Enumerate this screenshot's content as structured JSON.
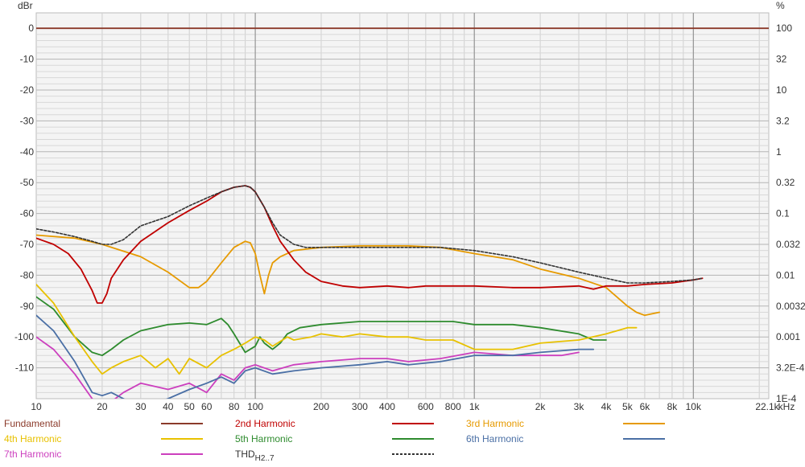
{
  "chart_data": {
    "type": "line",
    "y_unit_left": "dBr",
    "y_unit_right": "%",
    "x_unit": "kHz",
    "x_scale": "log",
    "xlim": [
      10,
      22100
    ],
    "ylim": [
      -120,
      5
    ],
    "grid": true,
    "x_tick_labels": [
      "10",
      "20",
      "30",
      "40",
      "50",
      "60",
      "80",
      "100",
      "200",
      "300",
      "400",
      "600",
      "800",
      "1k",
      "2k",
      "3k",
      "4k",
      "5k",
      "6k",
      "8k",
      "10k",
      "22.1k"
    ],
    "x_ticks_hz": [
      10,
      20,
      30,
      40,
      50,
      60,
      80,
      100,
      200,
      300,
      400,
      600,
      800,
      1000,
      2000,
      3000,
      4000,
      5000,
      6000,
      8000,
      10000,
      22100
    ],
    "y_ticks_left": [
      0,
      -10,
      -20,
      -30,
      -40,
      -50,
      -60,
      -70,
      -80,
      -90,
      -100,
      -110
    ],
    "y_ticks_right": [
      {
        "db": 0,
        "label": "100"
      },
      {
        "db": -10,
        "label": "32"
      },
      {
        "db": -20,
        "label": "10"
      },
      {
        "db": -30,
        "label": "3.2"
      },
      {
        "db": -40,
        "label": "1"
      },
      {
        "db": -50,
        "label": "0.32"
      },
      {
        "db": -60,
        "label": "0.1"
      },
      {
        "db": -70,
        "label": "0.032"
      },
      {
        "db": -80,
        "label": "0.01"
      },
      {
        "db": -90,
        "label": "0.0032"
      },
      {
        "db": -100,
        "label": "0.001"
      },
      {
        "db": -110,
        "label": "3.2E-4"
      },
      {
        "db": -120,
        "label": "1E-4"
      }
    ],
    "series": [
      {
        "name": "Fundamental",
        "color": "#8b3a2a",
        "dashed": false,
        "x": [
          10,
          22100
        ],
        "y": [
          0,
          0
        ]
      },
      {
        "name": "2nd Harmonic",
        "color": "#c00000",
        "dashed": false,
        "x": [
          10,
          12,
          14,
          16,
          18,
          19,
          20,
          21,
          22,
          25,
          30,
          40,
          50,
          60,
          70,
          80,
          90,
          95,
          100,
          110,
          120,
          130,
          150,
          170,
          200,
          250,
          300,
          400,
          500,
          600,
          700,
          800,
          1000,
          1500,
          2000,
          3000,
          3500,
          4000,
          5000,
          6000,
          8000,
          10000,
          11000
        ],
        "y": [
          -68,
          -70,
          -73,
          -78,
          -85,
          -89,
          -89,
          -86,
          -81,
          -75,
          -69,
          -63,
          -59,
          -56,
          -53,
          -51.5,
          -51,
          -51.5,
          -53,
          -58,
          -64,
          -69,
          -75,
          -79,
          -82,
          -83.5,
          -84,
          -83.5,
          -84,
          -83.5,
          -83.5,
          -83.5,
          -83.5,
          -84,
          -84,
          -83.5,
          -84.5,
          -83.5,
          -83.5,
          -83,
          -82.5,
          -81.5,
          -81
        ]
      },
      {
        "name": "3rd Harmonic",
        "color": "#e69a00",
        "dashed": false,
        "x": [
          10,
          15,
          20,
          30,
          40,
          50,
          55,
          60,
          70,
          80,
          90,
          95,
          100,
          105,
          110,
          115,
          120,
          130,
          150,
          200,
          300,
          500,
          700,
          1000,
          1500,
          2000,
          3000,
          4000,
          5000,
          5500,
          6000,
          7000
        ],
        "y": [
          -67,
          -68,
          -70,
          -74,
          -79,
          -84,
          -84,
          -82,
          -76,
          -71,
          -69,
          -69.5,
          -73,
          -80,
          -86,
          -80,
          -76,
          -74,
          -72,
          -71,
          -70.5,
          -70.5,
          -71,
          -73,
          -75,
          -78,
          -81,
          -84,
          -90,
          -92,
          -93,
          -92
        ]
      },
      {
        "name": "4th Harmonic",
        "color": "#e8c100",
        "dashed": false,
        "x": [
          10,
          12,
          15,
          18,
          20,
          22,
          25,
          30,
          35,
          40,
          45,
          50,
          60,
          70,
          80,
          90,
          100,
          110,
          120,
          140,
          150,
          180,
          200,
          250,
          300,
          400,
          500,
          600,
          800,
          1000,
          1500,
          2000,
          3000,
          4000,
          5000,
          5500
        ],
        "y": [
          -83,
          -89,
          -100,
          -108,
          -112,
          -110,
          -108,
          -106,
          -110,
          -107,
          -112,
          -107,
          -110,
          -106,
          -104,
          -102,
          -100,
          -101,
          -103,
          -100,
          -101,
          -100,
          -99,
          -100,
          -99,
          -100,
          -100,
          -101,
          -101,
          -104,
          -104,
          -102,
          -101,
          -99,
          -97,
          -97
        ]
      },
      {
        "name": "5th Harmonic",
        "color": "#2e8b2e",
        "dashed": false,
        "x": [
          10,
          12,
          15,
          18,
          20,
          22,
          25,
          30,
          40,
          50,
          60,
          70,
          75,
          80,
          90,
          100,
          105,
          110,
          120,
          130,
          140,
          160,
          200,
          300,
          500,
          800,
          1000,
          1500,
          2000,
          3000,
          3500,
          4000
        ],
        "y": [
          -87,
          -91,
          -100,
          -105,
          -106,
          -104,
          -101,
          -98,
          -96,
          -95.5,
          -96,
          -94,
          -96,
          -99,
          -105,
          -103,
          -100,
          -102,
          -104,
          -102,
          -99,
          -97,
          -96,
          -95,
          -95,
          -95,
          -96,
          -96,
          -97,
          -99,
          -101,
          -101
        ]
      },
      {
        "name": "6th Harmonic",
        "color": "#4a6fa5",
        "dashed": false,
        "x": [
          10,
          12,
          15,
          18,
          20,
          22,
          25,
          30,
          40,
          50,
          60,
          70,
          80,
          90,
          100,
          120,
          150,
          200,
          300,
          400,
          500,
          700,
          1000,
          1500,
          2000,
          3000,
          3500
        ],
        "y": [
          -93,
          -98,
          -108,
          -118,
          -119,
          -118,
          -120,
          -123,
          -120,
          -117,
          -115,
          -113,
          -115,
          -111,
          -110,
          -112,
          -111,
          -110,
          -109,
          -108,
          -109,
          -108,
          -106,
          -106,
          -105,
          -104,
          -104
        ]
      },
      {
        "name": "7th Harmonic",
        "color": "#cc3fbe",
        "dashed": false,
        "x": [
          10,
          12,
          15,
          18,
          20,
          22,
          25,
          30,
          40,
          50,
          60,
          70,
          80,
          90,
          100,
          120,
          150,
          200,
          300,
          400,
          500,
          700,
          1000,
          1500,
          2000,
          2500,
          3000
        ],
        "y": [
          -100,
          -104,
          -112,
          -120,
          -123,
          -121,
          -118,
          -115,
          -117,
          -115,
          -118,
          -112,
          -114,
          -110,
          -109,
          -111,
          -109,
          -108,
          -107,
          -107,
          -108,
          -107,
          -105,
          -106,
          -106,
          -106,
          -105
        ]
      },
      {
        "name": "THD",
        "color": "#333333",
        "dashed": true,
        "x": [
          10,
          12,
          15,
          18,
          20,
          22,
          25,
          30,
          40,
          50,
          60,
          70,
          80,
          90,
          95,
          100,
          110,
          120,
          130,
          150,
          170,
          200,
          300,
          500,
          700,
          1000,
          1500,
          2000,
          3000,
          4000,
          5000,
          6000,
          8000,
          10000,
          11000
        ],
        "y": [
          -65,
          -66,
          -67.5,
          -69,
          -70,
          -70,
          -68.5,
          -64,
          -61,
          -57.5,
          -55,
          -53,
          -51.5,
          -51,
          -51.5,
          -53,
          -58,
          -63,
          -67,
          -70,
          -71,
          -71,
          -71,
          -71,
          -71,
          -72,
          -74,
          -76,
          -79,
          -81,
          -82.5,
          -82.5,
          -82,
          -81.5,
          -81
        ]
      }
    ]
  },
  "legend": [
    {
      "label": "Fundamental",
      "sub": "",
      "color": "#8b3a2a",
      "dashed": false
    },
    {
      "label": "2nd Harmonic",
      "sub": "",
      "color": "#c00000",
      "dashed": false
    },
    {
      "label": "3rd Harmonic",
      "sub": "",
      "color": "#e69a00",
      "dashed": false
    },
    {
      "label": "4th Harmonic",
      "sub": "",
      "color": "#e8c100",
      "dashed": false
    },
    {
      "label": "5th Harmonic",
      "sub": "",
      "color": "#2e8b2e",
      "dashed": false
    },
    {
      "label": "6th Harmonic",
      "sub": "",
      "color": "#4a6fa5",
      "dashed": false
    },
    {
      "label": "7th Harmonic",
      "sub": "",
      "color": "#cc3fbe",
      "dashed": false
    },
    {
      "label": "THD",
      "sub": "H2..7",
      "color": "#333333",
      "dashed": true
    }
  ]
}
